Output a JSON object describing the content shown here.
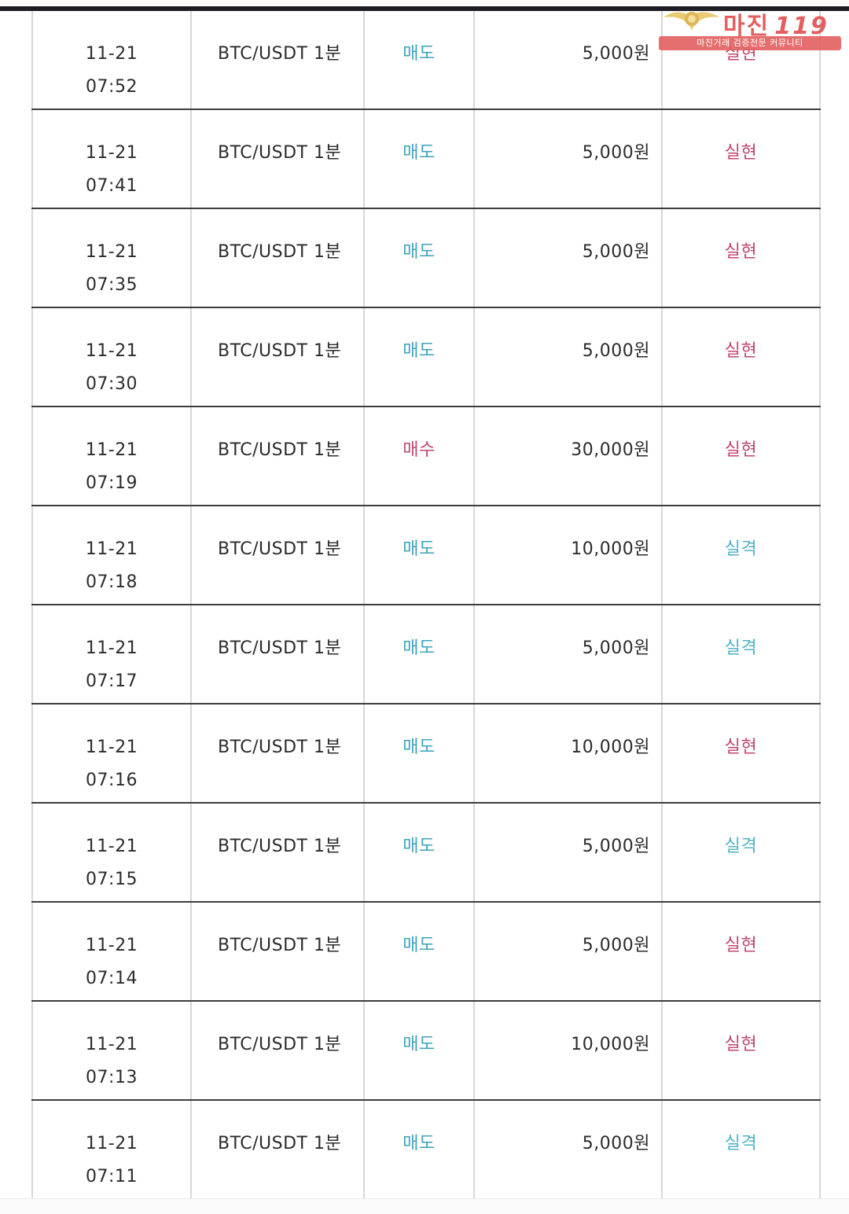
{
  "logo": {
    "brand": "마진",
    "number": "119",
    "tagline": "마진거래 검증전문 커뮤니티"
  },
  "colors": {
    "sell": "#3aa3bd",
    "buy": "#c0456c",
    "profit": "#c0456c",
    "loss": "#4fb2c6"
  },
  "rows": [
    {
      "date": "11-21",
      "time": "07:52",
      "pair": "BTC/USDT 1분",
      "side": "매도",
      "amount": "5,000원",
      "result": "실현"
    },
    {
      "date": "11-21",
      "time": "07:41",
      "pair": "BTC/USDT 1분",
      "side": "매도",
      "amount": "5,000원",
      "result": "실현"
    },
    {
      "date": "11-21",
      "time": "07:35",
      "pair": "BTC/USDT 1분",
      "side": "매도",
      "amount": "5,000원",
      "result": "실현"
    },
    {
      "date": "11-21",
      "time": "07:30",
      "pair": "BTC/USDT 1분",
      "side": "매도",
      "amount": "5,000원",
      "result": "실현"
    },
    {
      "date": "11-21",
      "time": "07:19",
      "pair": "BTC/USDT 1분",
      "side": "매수",
      "amount": "30,000원",
      "result": "실현"
    },
    {
      "date": "11-21",
      "time": "07:18",
      "pair": "BTC/USDT 1분",
      "side": "매도",
      "amount": "10,000원",
      "result": "실격"
    },
    {
      "date": "11-21",
      "time": "07:17",
      "pair": "BTC/USDT 1분",
      "side": "매도",
      "amount": "5,000원",
      "result": "실격"
    },
    {
      "date": "11-21",
      "time": "07:16",
      "pair": "BTC/USDT 1분",
      "side": "매도",
      "amount": "10,000원",
      "result": "실현"
    },
    {
      "date": "11-21",
      "time": "07:15",
      "pair": "BTC/USDT 1분",
      "side": "매도",
      "amount": "5,000원",
      "result": "실격"
    },
    {
      "date": "11-21",
      "time": "07:14",
      "pair": "BTC/USDT 1분",
      "side": "매도",
      "amount": "5,000원",
      "result": "실현"
    },
    {
      "date": "11-21",
      "time": "07:13",
      "pair": "BTC/USDT 1분",
      "side": "매도",
      "amount": "10,000원",
      "result": "실현"
    },
    {
      "date": "11-21",
      "time": "07:11",
      "pair": "BTC/USDT 1분",
      "side": "매도",
      "amount": "5,000원",
      "result": "실격"
    }
  ]
}
